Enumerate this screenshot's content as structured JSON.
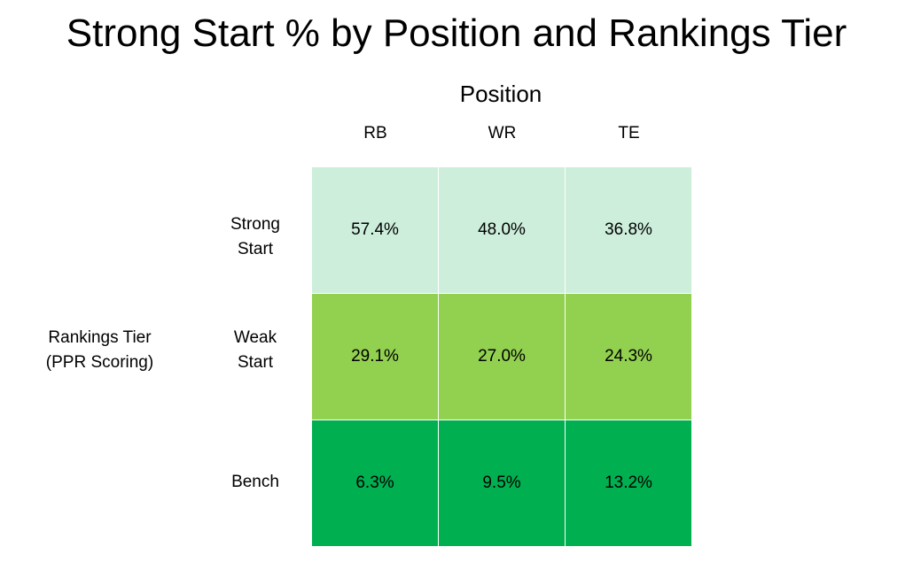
{
  "chart_data": {
    "type": "table",
    "title": "Strong Start % by Position and Rankings Tier",
    "column_group_label": "Position",
    "row_group_label": [
      "Rankings Tier",
      "(PPR Scoring)"
    ],
    "columns": [
      "RB",
      "WR",
      "TE"
    ],
    "rows": [
      {
        "label": [
          "Strong",
          "Start"
        ],
        "values": [
          "57.4%",
          "48.0%",
          "36.8%"
        ],
        "color": "#cdeedb"
      },
      {
        "label": [
          "Weak",
          "Start"
        ],
        "values": [
          "29.1%",
          "27.0%",
          "24.3%"
        ],
        "color": "#92d050"
      },
      {
        "label": [
          "Bench"
        ],
        "values": [
          "6.3%",
          "9.5%",
          "13.2%"
        ],
        "color": "#00b050"
      }
    ]
  }
}
